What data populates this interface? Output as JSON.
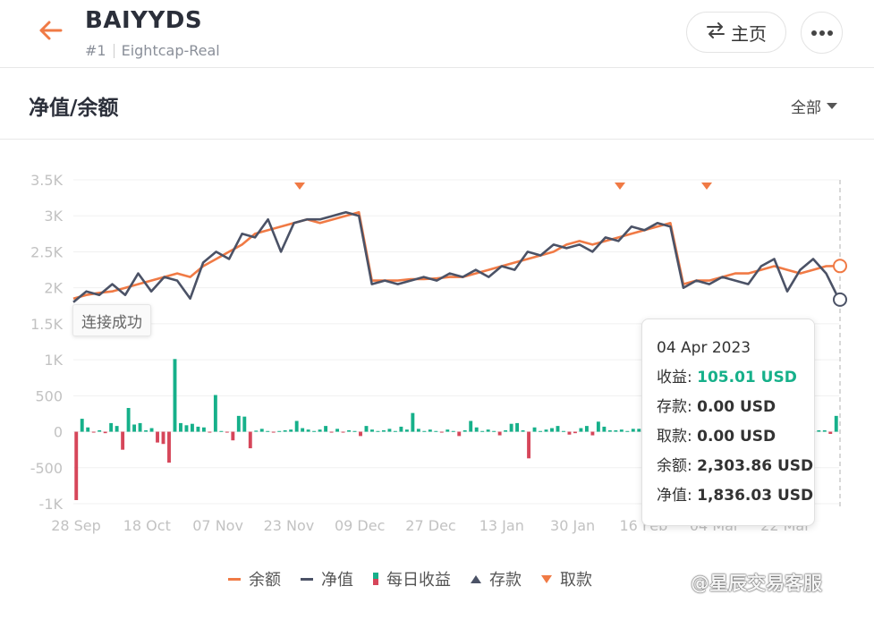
{
  "header": {
    "title": "BAIYYDS",
    "rank": "#1",
    "broker": "Eightcap-Real",
    "home_label": "主页"
  },
  "section": {
    "title": "净值/余额",
    "filter_label": "全部"
  },
  "status_tag": "连接成功",
  "tooltip": {
    "date": "04 Apr 2023",
    "rows": [
      {
        "label": "收益: ",
        "value": "105.01 USD",
        "positive": true
      },
      {
        "label": "存款: ",
        "value": "0.00 USD",
        "positive": false
      },
      {
        "label": "取款: ",
        "value": "0.00 USD",
        "positive": false
      },
      {
        "label": "余额: ",
        "value": "2,303.86 USD",
        "positive": false
      },
      {
        "label": "净值: ",
        "value": "1,836.03 USD",
        "positive": false
      }
    ]
  },
  "legend": {
    "balance": "余额",
    "equity": "净值",
    "daily": "每日收益",
    "deposit": "存款",
    "withdraw": "取款"
  },
  "watermark": "@星辰交易客服",
  "colors": {
    "balance": "#f07a45",
    "equity": "#4b5266",
    "profit": "#16b08a",
    "loss": "#d6465a"
  },
  "chart_data": {
    "type": "line",
    "y_ticks": [
      "3.5K",
      "3K",
      "2.5K",
      "2K",
      "1.5K",
      "1K",
      "500",
      "0",
      "-500",
      "-1K"
    ],
    "ylim": [
      -1000,
      3500
    ],
    "x_ticks": [
      "28 Sep",
      "18 Oct",
      "07 Nov",
      "23 Nov",
      "09 Dec",
      "27 Dec",
      "13 Jan",
      "30 Jan",
      "16 Feb",
      "04 Mar",
      "22 Mar"
    ],
    "series": [
      {
        "name": "余额",
        "values": [
          1850,
          1900,
          1930,
          1950,
          2000,
          2050,
          2100,
          2150,
          2200,
          2150,
          2300,
          2400,
          2500,
          2600,
          2750,
          2800,
          2850,
          2900,
          2950,
          2900,
          2950,
          3000,
          3050,
          2100,
          2100,
          2100,
          2120,
          2120,
          2130,
          2150,
          2150,
          2200,
          2250,
          2300,
          2350,
          2400,
          2450,
          2500,
          2600,
          2650,
          2600,
          2650,
          2700,
          2750,
          2800,
          2850,
          2900,
          2050,
          2100,
          2100,
          2150,
          2200,
          2200,
          2250,
          2300,
          2250,
          2200,
          2250,
          2300,
          2303
        ]
      },
      {
        "name": "净值",
        "values": [
          1800,
          1950,
          1900,
          2050,
          1900,
          2200,
          1950,
          2150,
          2100,
          1850,
          2350,
          2500,
          2400,
          2750,
          2700,
          2950,
          2500,
          2900,
          2950,
          2950,
          3000,
          3050,
          3000,
          2050,
          2100,
          2050,
          2100,
          2150,
          2100,
          2200,
          2150,
          2250,
          2150,
          2300,
          2250,
          2500,
          2450,
          2600,
          2550,
          2600,
          2500,
          2700,
          2650,
          2850,
          2800,
          2900,
          2850,
          2000,
          2100,
          2050,
          2150,
          2100,
          2050,
          2300,
          2400,
          1950,
          2250,
          2400,
          2200,
          1836
        ]
      },
      {
        "name": "每日收益",
        "values": [
          -950,
          180,
          60,
          -5,
          20,
          -20,
          120,
          80,
          -250,
          330,
          100,
          120,
          20,
          50,
          -150,
          -170,
          -430,
          1010,
          120,
          90,
          110,
          70,
          60,
          -5,
          510,
          10,
          -5,
          -120,
          220,
          210,
          -230,
          15,
          40,
          10,
          -5,
          10,
          20,
          30,
          150,
          50,
          30,
          10,
          30,
          80,
          -5,
          40,
          -10,
          20,
          10,
          -60,
          80,
          30,
          10,
          20,
          40,
          10,
          70,
          30,
          260,
          40,
          10,
          30,
          10,
          -5,
          30,
          10,
          -60,
          20,
          150,
          60,
          10,
          30,
          10,
          -50,
          20,
          110,
          120,
          20,
          -370,
          60,
          10,
          30,
          50,
          80,
          10,
          -40,
          -20,
          50,
          80,
          -50,
          140,
          70,
          20,
          20,
          30,
          10,
          40,
          40,
          30,
          -60,
          270,
          -120,
          80,
          40,
          30,
          20,
          10,
          10,
          10,
          20,
          30,
          10,
          20,
          10,
          20,
          30,
          20,
          10,
          30,
          20,
          20,
          10,
          40,
          20,
          60,
          30,
          10,
          20,
          20,
          20,
          -30,
          220
        ]
      }
    ],
    "deposit_markers": [],
    "withdraw_markers": [
      "23 Nov",
      "04 Feb",
      "22 Feb"
    ]
  }
}
